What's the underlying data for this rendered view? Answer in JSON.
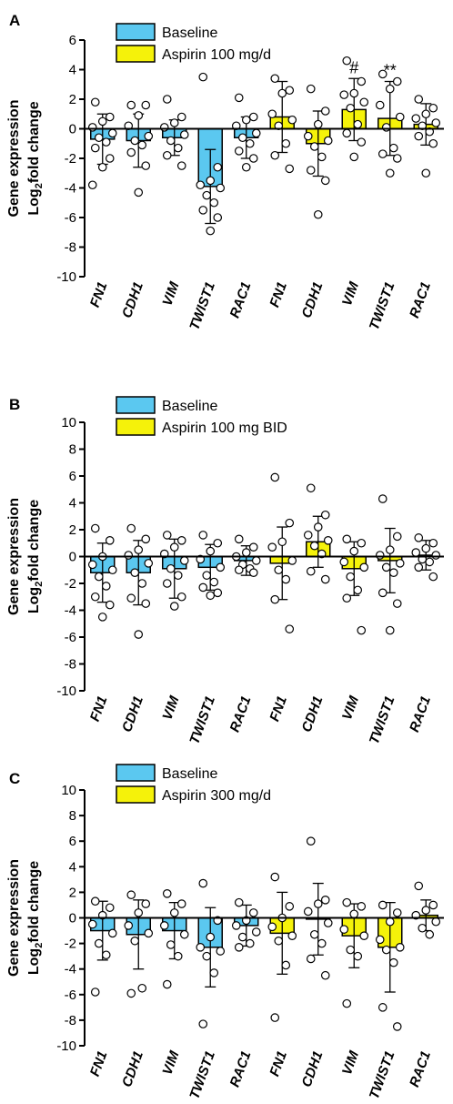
{
  "figure": {
    "panels": [
      "A",
      "B",
      "C"
    ]
  },
  "chart_data": [
    {
      "type": "bar",
      "panel_label": "A",
      "ylabel_line1": "Gene expression",
      "ylabel_line2_main": "Log",
      "ylabel_line2_sub": "2",
      "ylabel_line2_rest": "fold change",
      "ylim": [
        -10,
        6
      ],
      "yticks": [
        "6",
        "4",
        "2",
        "0",
        "-2",
        "-4",
        "-6",
        "-8",
        "-10"
      ],
      "legend": [
        {
          "label": "Baseline",
          "color": "#5bc8f0"
        },
        {
          "label": "Aspirin 100 mg/d",
          "color": "#f5f20a"
        }
      ],
      "legend_placement": "top-left",
      "categories": [
        "FN1",
        "CDH1",
        "VIM",
        "TWIST1",
        "RAC1",
        "FN1",
        "CDH1",
        "VIM",
        "TWIST1",
        "RAC1"
      ],
      "groups": [
        "Baseline",
        "Baseline",
        "Baseline",
        "Baseline",
        "Baseline",
        "Aspirin",
        "Aspirin",
        "Aspirin",
        "Aspirin",
        "Aspirin"
      ],
      "values": [
        -0.7,
        -0.8,
        -0.6,
        -3.9,
        -0.6,
        0.8,
        -1.0,
        1.3,
        0.7,
        0.3
      ],
      "sd": [
        1.7,
        1.8,
        1.2,
        2.5,
        1.4,
        2.4,
        2.2,
        2.1,
        2.5,
        1.4
      ],
      "points": [
        [
          1.8,
          0.8,
          0.5,
          0.1,
          -0.3,
          -0.6,
          -0.9,
          -1.3,
          -2.0,
          -2.6,
          -3.8
        ],
        [
          1.6,
          1.6,
          0.9,
          0.2,
          -0.5,
          -0.8,
          -1.1,
          -1.6,
          -2.5,
          -4.3
        ],
        [
          2.0,
          0.8,
          0.4,
          0.1,
          -0.4,
          -0.8,
          -1.3,
          -1.8,
          -2.5
        ],
        [
          3.5,
          -2.6,
          -3.5,
          -3.8,
          -4.0,
          -4.5,
          -5.0,
          -5.5,
          -6.0,
          -6.9
        ],
        [
          2.1,
          0.8,
          0.6,
          0.2,
          -0.3,
          -0.6,
          -1.0,
          -1.5,
          -2.0,
          -2.6
        ],
        [
          3.4,
          2.6,
          2.4,
          1.0,
          0.6,
          0.2,
          -1.0,
          -1.8,
          -2.7
        ],
        [
          2.7,
          1.2,
          0.3,
          -0.5,
          -0.8,
          -1.2,
          -1.9,
          -2.8,
          -3.5,
          -5.8
        ],
        [
          4.6,
          3.2,
          2.4,
          2.3,
          1.8,
          1.4,
          0.3,
          -0.3,
          -0.9,
          -1.9
        ],
        [
          3.7,
          3.2,
          2.7,
          1.6,
          0.8,
          0.1,
          -1.3,
          -1.7,
          -2.0,
          -3.0
        ],
        [
          2.0,
          1.4,
          1.0,
          0.7,
          0.4,
          0.2,
          -0.2,
          -0.5,
          -1.0,
          -3.0
        ]
      ],
      "annotations": [
        {
          "index": 7,
          "text": "#"
        },
        {
          "index": 8,
          "text": "**"
        }
      ]
    },
    {
      "type": "bar",
      "panel_label": "B",
      "ylabel_line1": "Gene expression",
      "ylabel_line2_main": "Log",
      "ylabel_line2_sub": "2",
      "ylabel_line2_rest": "fold change",
      "ylim": [
        -10,
        10
      ],
      "yticks": [
        "10",
        "8",
        "6",
        "4",
        "2",
        "0",
        "-2",
        "-4",
        "-6",
        "-8",
        "-10"
      ],
      "legend": [
        {
          "label": "Baseline",
          "color": "#5bc8f0"
        },
        {
          "label": "Aspirin 100 mg BID",
          "color": "#f5f20a"
        }
      ],
      "legend_placement": "top-left",
      "categories": [
        "FN1",
        "CDH1",
        "VIM",
        "TWIST1",
        "RAC1",
        "FN1",
        "CDH1",
        "VIM",
        "TWIST1",
        "RAC1"
      ],
      "groups": [
        "Baseline",
        "Baseline",
        "Baseline",
        "Baseline",
        "Baseline",
        "Aspirin",
        "Aspirin",
        "Aspirin",
        "Aspirin",
        "Aspirin"
      ],
      "values": [
        -1.2,
        -1.2,
        -0.9,
        -0.8,
        -0.3,
        -0.5,
        1.1,
        -0.9,
        -0.3,
        0.1
      ],
      "sd": [
        2.2,
        2.4,
        2.2,
        1.7,
        1.1,
        2.7,
        1.9,
        2.0,
        2.4,
        1.1
      ],
      "points": [
        [
          2.1,
          1.2,
          0.0,
          -0.6,
          -1.0,
          -1.5,
          -2.2,
          -3.0,
          -3.6,
          -4.5
        ],
        [
          2.1,
          1.3,
          0.5,
          0.1,
          -0.5,
          -1.2,
          -2.0,
          -3.1,
          -3.5,
          -5.8
        ],
        [
          1.6,
          1.2,
          0.7,
          0.2,
          -0.3,
          -0.9,
          -1.4,
          -2.0,
          -3.0,
          -3.7
        ],
        [
          1.6,
          1.0,
          0.4,
          -0.2,
          -0.8,
          -1.4,
          -1.9,
          -2.3,
          -2.7,
          -2.9
        ],
        [
          1.3,
          0.7,
          0.3,
          0.0,
          -0.3,
          -0.6,
          -0.9,
          -1.0,
          -1.2
        ],
        [
          5.9,
          2.5,
          1.1,
          0.7,
          -0.3,
          -1.0,
          -1.7,
          -3.2,
          -5.4
        ],
        [
          5.1,
          3.1,
          2.2,
          1.6,
          1.2,
          0.8,
          0.2,
          -1.1,
          -1.7
        ],
        [
          1.3,
          1.0,
          0.4,
          -0.4,
          -0.8,
          -1.5,
          -2.5,
          -3.1,
          -5.5
        ],
        [
          4.3,
          1.5,
          0.5,
          0.1,
          -0.5,
          -0.8,
          -1.2,
          -2.7,
          -3.5,
          -5.5
        ],
        [
          1.4,
          1.0,
          0.6,
          0.3,
          0.1,
          -0.2,
          -0.4,
          -0.8,
          -1.5
        ]
      ],
      "annotations": []
    },
    {
      "type": "bar",
      "panel_label": "C",
      "ylabel_line1": "Gene expression",
      "ylabel_line2_main": "Log",
      "ylabel_line2_sub": "2",
      "ylabel_line2_rest": "fold change",
      "ylim": [
        -10,
        10
      ],
      "yticks": [
        "10",
        "8",
        "6",
        "4",
        "2",
        "0",
        "-2",
        "-4",
        "-6",
        "-8",
        "-10"
      ],
      "legend": [
        {
          "label": "Baseline",
          "color": "#5bc8f0"
        },
        {
          "label": "Aspirin 300 mg/d",
          "color": "#f5f20a"
        }
      ],
      "legend_placement": "top-left",
      "categories": [
        "FN1",
        "CDH1",
        "VIM",
        "TWIST1",
        "RAC1",
        "FN1",
        "CDH1",
        "VIM",
        "TWIST1",
        "RAC1"
      ],
      "groups": [
        "Baseline",
        "Baseline",
        "Baseline",
        "Baseline",
        "Baseline",
        "Aspirin",
        "Aspirin",
        "Aspirin",
        "Aspirin",
        "Aspirin"
      ],
      "values": [
        -1.0,
        -1.3,
        -1.0,
        -2.3,
        -0.6,
        -1.2,
        -0.1,
        -1.4,
        -2.3,
        0.2
      ],
      "sd": [
        2.3,
        2.7,
        2.2,
        3.1,
        1.6,
        3.2,
        2.8,
        2.5,
        3.5,
        1.2
      ],
      "points": [
        [
          1.3,
          0.8,
          0.2,
          -0.5,
          -1.2,
          -2.0,
          -2.9,
          -5.8
        ],
        [
          1.8,
          1.1,
          0.4,
          -0.6,
          -1.2,
          -1.8,
          -5.5,
          -5.9
        ],
        [
          1.9,
          1.1,
          0.4,
          -0.6,
          -1.3,
          -2.1,
          -3.0,
          -5.2
        ],
        [
          2.7,
          -0.2,
          -1.5,
          -2.3,
          -2.6,
          -3.0,
          -4.3,
          -8.3
        ],
        [
          1.2,
          0.4,
          -0.2,
          -0.6,
          -1.1,
          -1.5,
          -2.0,
          -2.3
        ],
        [
          3.2,
          0.9,
          0.0,
          -0.7,
          -1.4,
          -1.8,
          -3.7,
          -7.8
        ],
        [
          6.0,
          1.4,
          1.1,
          0.5,
          -0.4,
          -1.3,
          -2.0,
          -3.2,
          -4.5
        ],
        [
          1.2,
          0.9,
          0.3,
          -0.9,
          -1.4,
          -2.5,
          -3.0,
          -6.7
        ],
        [
          1.0,
          0.4,
          -0.3,
          -1.7,
          -2.3,
          -2.5,
          -3.5,
          -7.0,
          -8.5
        ],
        [
          2.5,
          1.0,
          0.6,
          0.2,
          -0.3,
          -0.8,
          -1.3
        ]
      ],
      "annotations": []
    }
  ]
}
